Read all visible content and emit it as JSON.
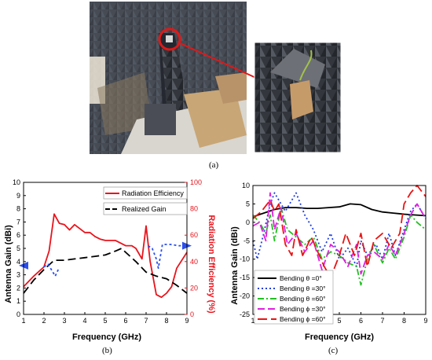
{
  "captions": {
    "a": "(a)",
    "b": "(b)",
    "c": "(c)"
  },
  "colors": {
    "chamber_wall": "#3b3f46",
    "absorber": "#2a2d32",
    "cardboard": "#c8a676",
    "marker_red": "#e01818"
  },
  "chart_data": [
    {
      "type": "line",
      "id": "b",
      "xlabel": "Frequency (GHz)",
      "ylabel": "Antenna Gain (dBi)",
      "ylabel_right": "Radiation Efficiency (%)",
      "xlim": [
        1,
        9
      ],
      "ylim": [
        0,
        10
      ],
      "ylim_right": [
        0,
        100
      ],
      "xticks": [
        "1",
        "2",
        "3",
        "4",
        "5",
        "6",
        "7",
        "8",
        "9"
      ],
      "yticks": [
        "0",
        "1",
        "2",
        "3",
        "4",
        "5",
        "6",
        "7",
        "8",
        "9",
        "10"
      ],
      "yticks_right": [
        "0",
        "20",
        "40",
        "60",
        "80",
        "100"
      ],
      "legend": [
        "Radiation Efficiency",
        "Realized Gain"
      ],
      "series": [
        {
          "name": "Radiation Efficiency",
          "axis": "right",
          "color": "#e8141c",
          "dash": "solid",
          "x": [
            1.0,
            1.5,
            2.0,
            2.25,
            2.5,
            2.75,
            3.0,
            3.25,
            3.5,
            3.75,
            4.0,
            4.25,
            4.5,
            4.75,
            5.0,
            5.5,
            6.0,
            6.3,
            6.5,
            6.8,
            7.0,
            7.2,
            7.5,
            7.75,
            8.0,
            8.25,
            8.5,
            9.0
          ],
          "y": [
            21,
            29,
            36,
            48,
            76,
            69,
            68,
            64,
            68,
            65,
            62,
            62,
            59,
            57,
            56,
            56,
            52,
            52,
            50,
            42,
            67,
            40,
            15,
            13,
            16,
            21,
            35,
            47
          ]
        },
        {
          "name": "Realized Gain",
          "axis": "left",
          "color": "#000000",
          "dash": "10 5",
          "x": [
            1.0,
            1.5,
            2.0,
            2.5,
            3.0,
            3.5,
            4.0,
            4.5,
            5.0,
            5.5,
            5.8,
            6.0,
            6.5,
            7.0,
            7.5,
            8.0,
            8.5,
            9.0
          ],
          "y": [
            1.6,
            2.6,
            3.4,
            4.1,
            4.1,
            4.2,
            4.3,
            4.4,
            4.5,
            4.8,
            5.0,
            4.7,
            4.0,
            3.2,
            2.9,
            2.7,
            2.2,
            1.6
          ]
        },
        {
          "name": "",
          "axis": "right",
          "color": "#2a4ef0",
          "dash": "3 3",
          "x": [
            2.0,
            2.2,
            2.4,
            2.55,
            2.7
          ],
          "y": [
            36,
            38,
            33,
            29,
            34
          ]
        },
        {
          "name": "",
          "axis": "right",
          "color": "#2a4ef0",
          "dash": "3 3",
          "x": [
            7.1,
            7.3,
            7.5,
            7.6,
            7.8,
            8.2,
            8.6,
            9.0
          ],
          "y": [
            52,
            50,
            42,
            35,
            53,
            53,
            52,
            52
          ]
        }
      ],
      "annotations": [
        {
          "type": "arrow-left",
          "x": 1.0,
          "y": 3.7,
          "color": "#2a4ef0"
        },
        {
          "type": "arrow-right",
          "x": 9.0,
          "y": 5.2,
          "color": "#2a4ef0"
        }
      ]
    },
    {
      "type": "line",
      "id": "c",
      "xlabel": "Frequency (GHz)",
      "ylabel": "Antenna Gain (dBi)",
      "xlim": [
        1,
        9
      ],
      "ylim": [
        -25,
        10
      ],
      "xticks": [
        "1",
        "2",
        "3",
        "4",
        "5",
        "6",
        "7",
        "8",
        "9"
      ],
      "yticks": [
        "-25",
        "-20",
        "-15",
        "-10",
        "-5",
        "0",
        "5",
        "10"
      ],
      "legend": [
        "Bending θ =0°",
        "Bending θ =30°",
        "Bending θ =60°",
        "Bending ϕ =30°",
        "Bending ϕ =60°"
      ],
      "series": [
        {
          "name": "Bending θ =0°",
          "color": "#000000",
          "dash": "solid",
          "x": [
            1.0,
            1.5,
            2.0,
            2.5,
            3.0,
            3.5,
            4.0,
            4.5,
            5.0,
            5.5,
            6.0,
            6.5,
            7.0,
            7.5,
            8.0,
            8.5,
            9.0
          ],
          "y": [
            1.5,
            2.5,
            3.5,
            4.0,
            4.0,
            3.8,
            3.8,
            4.0,
            4.2,
            5.0,
            4.8,
            3.5,
            2.8,
            2.5,
            2.2,
            2.0,
            1.8
          ]
        },
        {
          "name": "Bending θ =30°",
          "color": "#1f3fe0",
          "dash": "2 3",
          "x": [
            1.0,
            1.2,
            1.5,
            1.8,
            2.0,
            2.2,
            2.5,
            3.0,
            3.4,
            3.8,
            4.2,
            4.6,
            5.0,
            5.4,
            5.8,
            6.0,
            6.3,
            6.7,
            7.0,
            7.3,
            7.6,
            8.0,
            8.3,
            8.6,
            9.0
          ],
          "y": [
            -5,
            -10,
            -3,
            5,
            8,
            6,
            3,
            8,
            2,
            -2,
            -8,
            -3,
            -10,
            -7,
            -12,
            -5,
            -9,
            -6,
            -10,
            -3,
            -9,
            -2,
            3,
            5,
            1
          ]
        },
        {
          "name": "Bending θ =60°",
          "color": "#22c022",
          "dash": "8 3 2 3",
          "x": [
            1.0,
            1.3,
            1.6,
            1.8,
            2.0,
            2.3,
            2.6,
            3.0,
            3.4,
            3.8,
            4.2,
            4.6,
            5.0,
            5.4,
            5.8,
            6.0,
            6.3,
            6.6,
            7.0,
            7.3,
            7.6,
            8.0,
            8.3,
            8.6,
            9.0
          ],
          "y": [
            2,
            0,
            -3,
            2,
            -5,
            4,
            -2,
            -4,
            -6,
            -4,
            -10,
            -8,
            -9,
            -11,
            -12,
            -17,
            -10,
            -6,
            -11,
            -7,
            -10,
            -4,
            2,
            0,
            -2
          ]
        },
        {
          "name": "Bending ϕ =30°",
          "color": "#e01fe0",
          "dash": "9 4",
          "x": [
            1.0,
            1.3,
            1.6,
            1.8,
            2.0,
            2.3,
            2.6,
            3.0,
            3.4,
            3.8,
            4.2,
            4.6,
            5.0,
            5.4,
            5.8,
            6.0,
            6.3,
            6.6,
            7.0,
            7.3,
            7.6,
            8.0,
            8.3,
            8.6,
            9.0
          ],
          "y": [
            -1,
            0,
            -5,
            8,
            -2,
            4,
            -6,
            -3,
            -8,
            -5,
            -13,
            -6,
            -8,
            -12,
            -6,
            -14,
            -9,
            -8,
            -10,
            -6,
            -9,
            -3,
            2,
            5,
            1
          ]
        },
        {
          "name": "Bending ϕ =60°",
          "color": "#e81414",
          "dash": "12 5",
          "x": [
            1.0,
            1.4,
            1.8,
            2.0,
            2.2,
            2.5,
            2.8,
            3.0,
            3.3,
            3.7,
            4.0,
            4.3,
            4.6,
            5.0,
            5.3,
            5.7,
            6.0,
            6.3,
            6.6,
            7.0,
            7.4,
            7.8,
            8.0,
            8.3,
            8.6,
            9.0
          ],
          "y": [
            1,
            3,
            6,
            3,
            5,
            -6,
            -9,
            -2,
            -9,
            -4,
            -8,
            -12,
            -15,
            -9,
            -3,
            -9,
            -3,
            -12,
            -5,
            -3,
            -7,
            -3,
            5,
            8,
            10,
            7
          ]
        }
      ]
    }
  ]
}
